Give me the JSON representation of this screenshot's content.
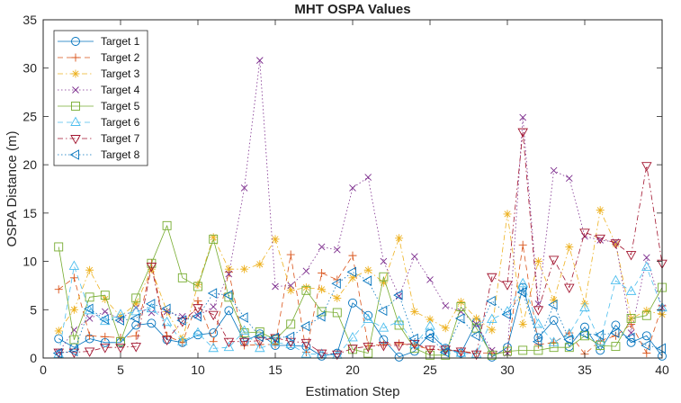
{
  "chart_data": {
    "type": "line",
    "title": "MHT OSPA Values",
    "xlabel": "Estimation Step",
    "ylabel": "OSPA Distance (m)",
    "xlim": [
      0,
      40
    ],
    "ylim": [
      0,
      35
    ],
    "xticks": [
      0,
      5,
      10,
      15,
      20,
      25,
      30,
      35,
      40
    ],
    "yticks": [
      0,
      5,
      10,
      15,
      20,
      25,
      30,
      35
    ],
    "grid": false,
    "legend_position": "top-left",
    "x": [
      1,
      2,
      3,
      4,
      5,
      6,
      7,
      8,
      9,
      10,
      11,
      12,
      13,
      14,
      15,
      16,
      17,
      18,
      19,
      20,
      21,
      22,
      23,
      24,
      25,
      26,
      27,
      28,
      29,
      30,
      31,
      32,
      33,
      34,
      35,
      36,
      37,
      38,
      39,
      40
    ],
    "series": [
      {
        "name": "Target 1",
        "color": "#0072BD",
        "dash": "solid",
        "marker": "circle",
        "values": [
          2.0,
          1.1,
          2.0,
          1.6,
          1.6,
          3.4,
          3.6,
          1.9,
          1.6,
          2.4,
          2.6,
          4.9,
          1.7,
          2.5,
          1.3,
          1.3,
          1.2,
          0.2,
          0.5,
          5.7,
          4.4,
          1.9,
          0.1,
          0.7,
          2.5,
          1.0,
          0.5,
          3.7,
          0.1,
          1.1,
          7.3,
          2.1,
          3.9,
          1.2,
          3.2,
          0.8,
          3.4,
          1.6,
          2.3,
          0.2
        ]
      },
      {
        "name": "Target 2",
        "color": "#D95319",
        "dash": "dashed",
        "marker": "plus",
        "values": [
          7.1,
          8.3,
          2.3,
          2.2,
          2.1,
          2.3,
          9.8,
          2.3,
          1.6,
          5.9,
          1.7,
          8.9,
          1.3,
          1.4,
          1.4,
          10.7,
          0.6,
          8.8,
          8.1,
          10.6,
          1.3,
          1.4,
          1.5,
          1.3,
          0.9,
          0.8,
          0.7,
          0.5,
          0.5,
          0.6,
          11.7,
          1.4,
          1.6,
          2.6,
          0.4,
          1.8,
          2.3,
          3.5,
          0.5,
          5.4
        ]
      },
      {
        "name": "Target 3",
        "color": "#EDB120",
        "dash": "dashdot",
        "marker": "asterisk",
        "values": [
          2.8,
          5.0,
          9.1,
          6.1,
          4.3,
          5.6,
          9.2,
          4.8,
          2.0,
          7.6,
          12.5,
          9.2,
          9.2,
          9.7,
          12.3,
          7.0,
          7.3,
          7.1,
          6.2,
          8.3,
          9.1,
          7.8,
          12.4,
          4.8,
          4.0,
          3.1,
          5.8,
          4.1,
          2.9,
          14.9,
          3.5,
          10.0,
          6.0,
          11.5,
          5.6,
          15.3,
          11.8,
          4.1,
          4.9,
          4.5
        ]
      },
      {
        "name": "Target 4",
        "color": "#7E2F8E",
        "dash": "dotted",
        "marker": "cross",
        "values": [
          0.6,
          2.9,
          4.1,
          4.8,
          4.0,
          5.2,
          4.7,
          4.8,
          4.3,
          4.4,
          5.3,
          8.7,
          17.6,
          30.8,
          7.4,
          7.5,
          9.0,
          11.5,
          11.2,
          17.6,
          18.7,
          10.0,
          6.4,
          10.5,
          8.1,
          5.4,
          4.8,
          3.5,
          0.8,
          0.5,
          24.9,
          5.6,
          19.4,
          18.6,
          12.6,
          12.2,
          12.0,
          2.6,
          10.4,
          5.2
        ]
      },
      {
        "name": "Target 5",
        "color": "#77AC30",
        "dash": "solid",
        "marker": "square",
        "values": [
          11.5,
          1.9,
          6.3,
          6.5,
          1.7,
          6.2,
          9.8,
          13.7,
          8.3,
          7.4,
          12.3,
          6.3,
          2.6,
          2.7,
          1.9,
          3.5,
          7.0,
          4.8,
          4.7,
          0.9,
          0.5,
          8.4,
          3.4,
          1.0,
          0.3,
          0.3,
          5.3,
          3.1,
          0.3,
          0.7,
          0.8,
          0.8,
          1.1,
          1.1,
          2.3,
          1.3,
          1.2,
          4.1,
          4.4,
          7.3
        ]
      },
      {
        "name": "Target 6",
        "color": "#4DBEEE",
        "dash": "dashed",
        "marker": "triangle-up",
        "values": [
          0.4,
          9.5,
          4.9,
          3.8,
          4.5,
          4.8,
          5.1,
          3.7,
          1.7,
          2.6,
          1.0,
          1.1,
          2.8,
          1.0,
          1.6,
          1.4,
          0.4,
          0.4,
          0.3,
          2.1,
          4.0,
          3.1,
          3.8,
          1.4,
          3.3,
          0.8,
          0.5,
          0.4,
          4.0,
          4.8,
          7.7,
          3.5,
          1.6,
          2.5,
          5.2,
          1.7,
          8.0,
          6.9,
          9.4,
          5.2
        ]
      },
      {
        "name": "Target 7",
        "color": "#A2142F",
        "dash": "dashdot",
        "marker": "triangle-down",
        "values": [
          0.6,
          0.6,
          0.7,
          1.1,
          1.1,
          1.2,
          9.5,
          1.9,
          3.8,
          5.2,
          4.5,
          1.7,
          1.7,
          1.8,
          2.1,
          1.7,
          1.6,
          0.5,
          0.4,
          1.0,
          1.2,
          1.3,
          1.3,
          1.5,
          0.9,
          0.9,
          0.7,
          0.4,
          8.4,
          7.6,
          23.4,
          5.0,
          10.2,
          7.3,
          13.0,
          12.4,
          11.9,
          10.7,
          19.9,
          9.8
        ]
      },
      {
        "name": "Target 8",
        "color": "#0072BD",
        "dash": "dotted",
        "marker": "triangle-left",
        "values": [
          0.5,
          0.7,
          5.1,
          4.0,
          3.9,
          4.1,
          5.6,
          5.1,
          3.9,
          4.3,
          6.7,
          6.5,
          4.2,
          2.2,
          2.1,
          2.2,
          3.3,
          4.3,
          7.7,
          8.9,
          8.0,
          4.9,
          6.5,
          2.0,
          2.1,
          0.6,
          4.1,
          2.3,
          5.9,
          4.5,
          6.8,
          1.7,
          5.5,
          1.9,
          2.5,
          2.4,
          2.6,
          2.1,
          1.3,
          1.0
        ]
      }
    ]
  }
}
